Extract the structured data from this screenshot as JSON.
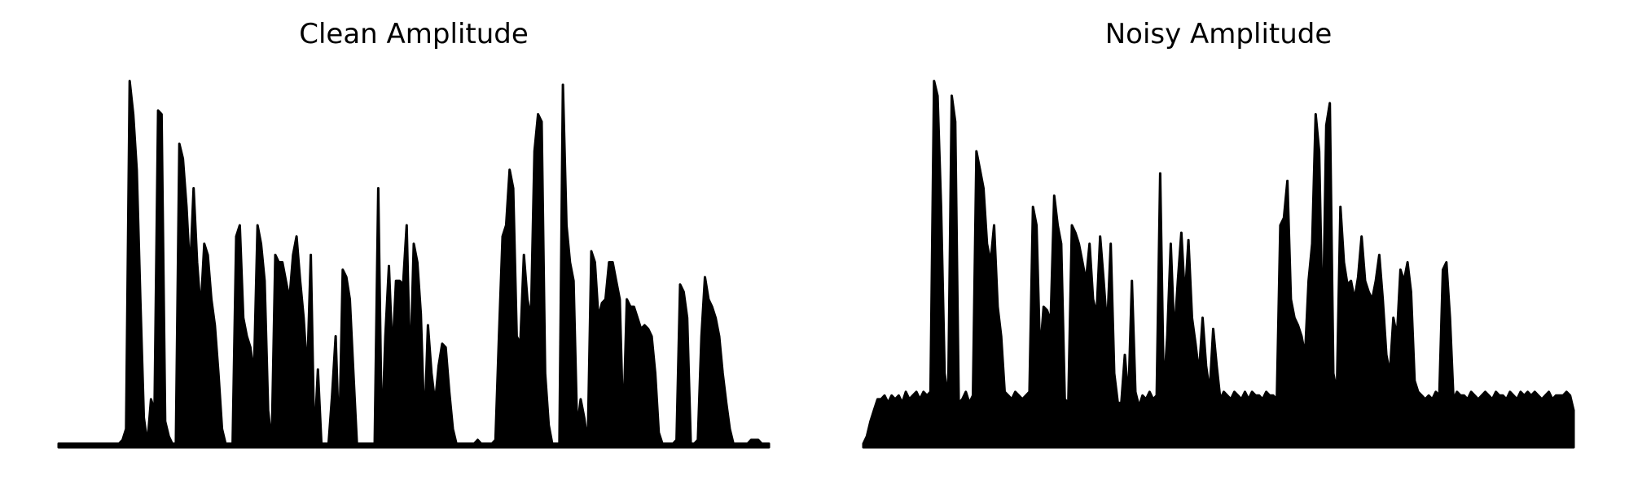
{
  "chart_data": [
    {
      "type": "area",
      "title": "Clean Amplitude",
      "xlabel": "",
      "ylabel": "",
      "grid": false,
      "axes_visible": false,
      "color": "#000000",
      "ylim": [
        0,
        1
      ],
      "xlim": [
        0,
        200
      ],
      "series": [
        {
          "values": [
            0.01,
            0.01,
            0.01,
            0.01,
            0.01,
            0.01,
            0.01,
            0.01,
            0.01,
            0.01,
            0.01,
            0.01,
            0.01,
            0.01,
            0.01,
            0.01,
            0.01,
            0.01,
            0.02,
            0.05,
            0.99,
            0.9,
            0.75,
            0.4,
            0.08,
            0.01,
            0.13,
            0.1,
            0.91,
            0.9,
            0.07,
            0.03,
            0.01,
            0.01,
            0.82,
            0.78,
            0.65,
            0.47,
            0.7,
            0.5,
            0.37,
            0.55,
            0.52,
            0.4,
            0.33,
            0.2,
            0.05,
            0.01,
            0.01,
            0.01,
            0.57,
            0.6,
            0.35,
            0.3,
            0.27,
            0.2,
            0.6,
            0.55,
            0.45,
            0.1,
            0.01,
            0.52,
            0.5,
            0.5,
            0.45,
            0.4,
            0.52,
            0.57,
            0.45,
            0.35,
            0.2,
            0.52,
            0.01,
            0.21,
            0.01,
            0.01,
            0.01,
            0.14,
            0.3,
            0.01,
            0.48,
            0.46,
            0.4,
            0.2,
            0.01,
            0.01,
            0.01,
            0.01,
            0.01,
            0.01,
            0.7,
            0.02,
            0.3,
            0.49,
            0.25,
            0.45,
            0.45,
            0.44,
            0.6,
            0.2,
            0.55,
            0.5,
            0.36,
            0.05,
            0.33,
            0.2,
            0.12,
            0.22,
            0.28,
            0.27,
            0.15,
            0.05,
            0.01,
            0.01,
            0.01,
            0.01,
            0.01,
            0.01,
            0.02,
            0.01,
            0.01,
            0.01,
            0.01,
            0.02,
            0.3,
            0.57,
            0.6,
            0.75,
            0.7,
            0.3,
            0.28,
            0.52,
            0.4,
            0.35,
            0.8,
            0.9,
            0.88,
            0.2,
            0.06,
            0.01,
            0.01,
            0.01,
            0.98,
            0.6,
            0.5,
            0.45,
            0.05,
            0.13,
            0.08,
            0.01,
            0.53,
            0.5,
            0.35,
            0.39,
            0.4,
            0.5,
            0.5,
            0.45,
            0.4,
            0.05,
            0.4,
            0.38,
            0.38,
            0.35,
            0.32,
            0.33,
            0.32,
            0.3,
            0.2,
            0.04,
            0.01,
            0.01,
            0.01,
            0.01,
            0.02,
            0.44,
            0.42,
            0.35,
            0.01,
            0.01,
            0.02,
            0.3,
            0.46,
            0.4,
            0.38,
            0.35,
            0.3,
            0.2,
            0.12,
            0.05,
            0.01,
            0.01,
            0.01,
            0.01,
            0.01,
            0.02,
            0.02,
            0.02,
            0.01,
            0.01,
            0.01
          ]
        }
      ]
    },
    {
      "type": "area",
      "title": "Noisy Amplitude",
      "xlabel": "",
      "ylabel": "",
      "grid": false,
      "axes_visible": false,
      "color": "#000000",
      "ylim": [
        0,
        1
      ],
      "xlim": [
        0,
        200
      ],
      "series": [
        {
          "values": [
            0.01,
            0.03,
            0.07,
            0.1,
            0.13,
            0.13,
            0.14,
            0.12,
            0.14,
            0.13,
            0.14,
            0.12,
            0.15,
            0.13,
            0.14,
            0.15,
            0.13,
            0.15,
            0.14,
            0.15,
            0.99,
            0.95,
            0.65,
            0.2,
            0.13,
            0.95,
            0.88,
            0.12,
            0.13,
            0.15,
            0.12,
            0.14,
            0.8,
            0.75,
            0.7,
            0.55,
            0.5,
            0.6,
            0.38,
            0.3,
            0.15,
            0.14,
            0.13,
            0.15,
            0.14,
            0.13,
            0.14,
            0.15,
            0.65,
            0.6,
            0.25,
            0.38,
            0.37,
            0.34,
            0.68,
            0.6,
            0.55,
            0.13,
            0.12,
            0.6,
            0.58,
            0.55,
            0.5,
            0.45,
            0.55,
            0.4,
            0.36,
            0.57,
            0.45,
            0.32,
            0.55,
            0.2,
            0.12,
            0.12,
            0.25,
            0.13,
            0.45,
            0.15,
            0.11,
            0.14,
            0.13,
            0.15,
            0.13,
            0.14,
            0.74,
            0.15,
            0.3,
            0.55,
            0.3,
            0.45,
            0.58,
            0.4,
            0.56,
            0.35,
            0.28,
            0.2,
            0.35,
            0.22,
            0.15,
            0.32,
            0.22,
            0.13,
            0.15,
            0.14,
            0.13,
            0.15,
            0.14,
            0.13,
            0.15,
            0.13,
            0.15,
            0.14,
            0.14,
            0.13,
            0.15,
            0.14,
            0.14,
            0.13,
            0.6,
            0.62,
            0.72,
            0.4,
            0.35,
            0.33,
            0.3,
            0.25,
            0.45,
            0.55,
            0.9,
            0.8,
            0.3,
            0.87,
            0.93,
            0.2,
            0.15,
            0.65,
            0.5,
            0.44,
            0.45,
            0.4,
            0.46,
            0.57,
            0.45,
            0.42,
            0.4,
            0.45,
            0.52,
            0.4,
            0.25,
            0.2,
            0.35,
            0.3,
            0.48,
            0.45,
            0.5,
            0.42,
            0.18,
            0.15,
            0.14,
            0.13,
            0.14,
            0.13,
            0.15,
            0.14,
            0.48,
            0.5,
            0.35,
            0.13,
            0.15,
            0.14,
            0.14,
            0.13,
            0.15,
            0.14,
            0.13,
            0.14,
            0.15,
            0.14,
            0.13,
            0.15,
            0.14,
            0.14,
            0.13,
            0.15,
            0.14,
            0.13,
            0.15,
            0.14,
            0.15,
            0.14,
            0.15,
            0.14,
            0.13,
            0.14,
            0.15,
            0.13,
            0.14,
            0.14,
            0.14,
            0.15,
            0.14,
            0.1
          ]
        }
      ]
    }
  ]
}
